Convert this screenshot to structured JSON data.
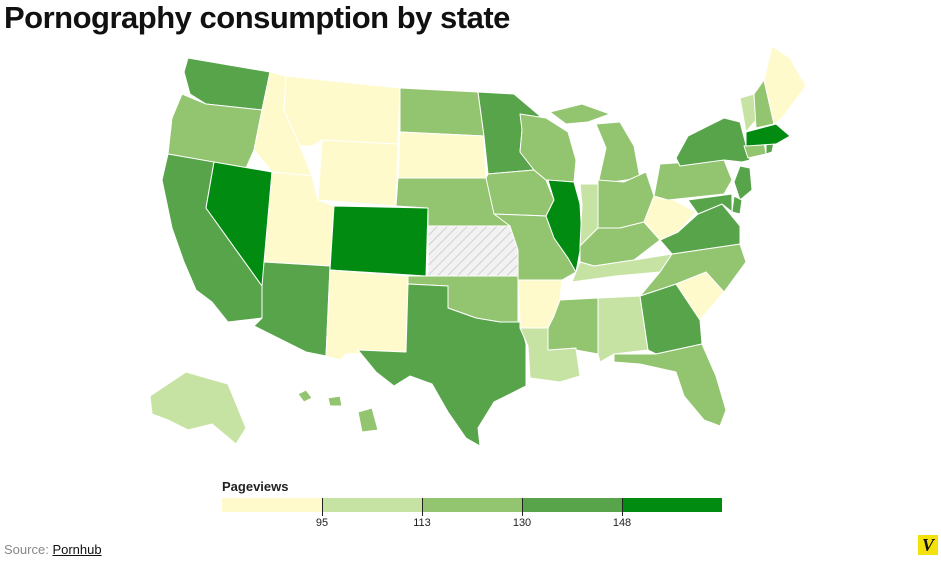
{
  "title": "Pornography consumption by state",
  "legend": {
    "title": "Pageviews",
    "colors": [
      "#fffacc",
      "#c7e3a4",
      "#93c46f",
      "#57a44a",
      "#018c11"
    ],
    "ticks": [
      "95",
      "113",
      "130",
      "148"
    ]
  },
  "no_data": {
    "color": "#f2f2f2",
    "hatch": "#c4c4c4",
    "states": [
      "KS"
    ]
  },
  "source": {
    "label": "Source:",
    "link": "Pornhub"
  },
  "logo": {
    "text": "V",
    "color": "#f2e10a"
  },
  "map": {
    "type": "choropleth",
    "region": "United States",
    "bins": [
      {
        "class": 0,
        "states": [
          "MT",
          "ID",
          "WY",
          "UT",
          "SD",
          "NM",
          "AR",
          "WV",
          "SC",
          "ME"
        ]
      },
      {
        "class": 1,
        "states": [
          "IN",
          "LA",
          "AL",
          "TN",
          "VT",
          "AK"
        ]
      },
      {
        "class": 2,
        "states": [
          "OR",
          "ND",
          "NE",
          "IA",
          "WI",
          "MI",
          "MO",
          "OK",
          "KY",
          "OH",
          "MS",
          "NC",
          "PA",
          "NH",
          "FL",
          "CT",
          "HI"
        ]
      },
      {
        "class": 3,
        "states": [
          "WA",
          "CA",
          "AZ",
          "MN",
          "TX",
          "GA",
          "VA",
          "NY",
          "NJ",
          "MD",
          "DE",
          "RI"
        ]
      },
      {
        "class": 4,
        "states": [
          "NV",
          "CO",
          "IL",
          "MA"
        ]
      }
    ]
  }
}
